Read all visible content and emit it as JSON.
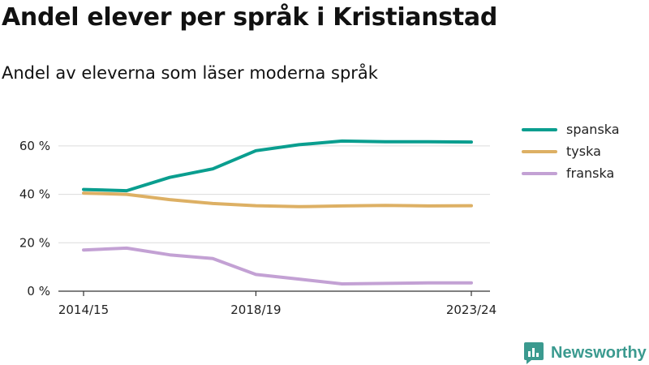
{
  "header": {
    "title": "Andel elever per språk i Kristianstad",
    "subtitle": "Andel av eleverna som läser moderna språk"
  },
  "brand": {
    "name": "Newsworthy",
    "color": "#3b9a8f"
  },
  "chart_data": {
    "type": "line",
    "title": "Andel elever per språk i Kristianstad",
    "subtitle": "Andel av eleverna som läser moderna språk",
    "x_ticks": [
      "2014/15",
      "2018/19",
      "2023/24"
    ],
    "y_ticks": [
      "0 %",
      "20 %",
      "40 %",
      "60 %"
    ],
    "ylim": [
      0,
      70
    ],
    "grid": true,
    "legend_position": "right",
    "x": [
      "2014/15",
      "2015/16",
      "2016/17",
      "2017/18",
      "2018/19",
      "2019/20",
      "2020/21",
      "2021/22",
      "2022/23",
      "2023/24"
    ],
    "series": [
      {
        "name": "spanska",
        "color": "#0a9e8f",
        "values": [
          42,
          41.5,
          47,
          50.5,
          58,
          60.5,
          62,
          61.7,
          61.7,
          61.6
        ]
      },
      {
        "name": "tyska",
        "color": "#ddb064",
        "values": [
          40.5,
          40,
          37.8,
          36.2,
          35.3,
          34.9,
          35.2,
          35.4,
          35.2,
          35.3
        ]
      },
      {
        "name": "franska",
        "color": "#c3a1d4",
        "values": [
          17,
          17.8,
          15,
          13.5,
          6.9,
          5,
          3,
          3.2,
          3.4,
          3.4
        ]
      }
    ]
  }
}
